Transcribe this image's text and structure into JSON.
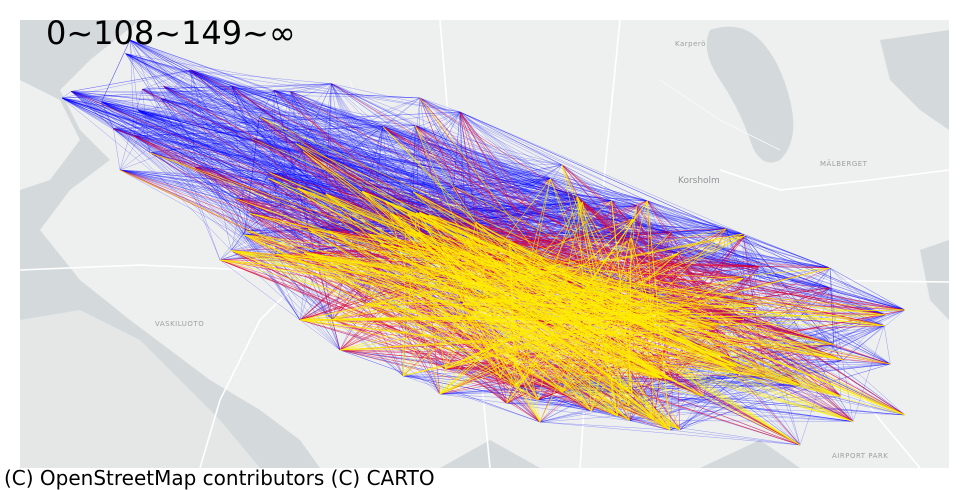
{
  "legend": {
    "title": "0~108~149~∞"
  },
  "attribution": "(C) OpenStreetMap contributors (C) CARTO",
  "places": [
    {
      "name": "Karperö"
    },
    {
      "name": "Korsholm"
    },
    {
      "name": "MÄLBERGET"
    },
    {
      "name": "VASKILUOTO"
    },
    {
      "name": "AIRPORT PARK"
    }
  ],
  "colors": {
    "low": "#0000ff",
    "mid": "#dd0033",
    "high": "#ffee00",
    "water": "#d4d9dc",
    "land": "#eef0ef",
    "road": "#ffffff"
  },
  "layers": [
    "basemap-layer",
    "od-flow-layer"
  ]
}
